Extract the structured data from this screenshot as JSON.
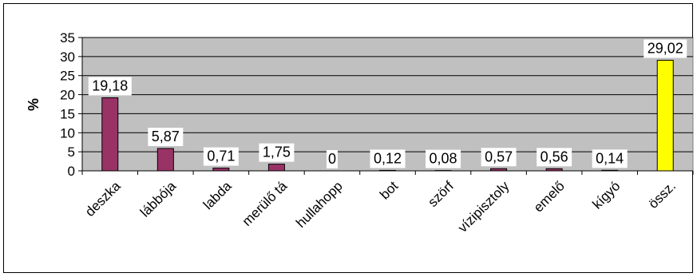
{
  "chart_data": {
    "type": "bar",
    "title": "",
    "xlabel": "",
    "ylabel": "%",
    "ylim": [
      0,
      35
    ],
    "yticks": [
      0,
      5,
      10,
      15,
      20,
      25,
      30,
      35
    ],
    "grid": true,
    "legend": "none",
    "categories": [
      "deszka",
      "lábbója",
      "labda",
      "merülő tá",
      "hullahopp",
      "bot",
      "szörf",
      "vízipisztoly",
      "emelő",
      "kígyó",
      "össz."
    ],
    "values": [
      19.18,
      5.87,
      0.71,
      1.75,
      0,
      0.12,
      0.08,
      0.57,
      0.56,
      0.14,
      29.02
    ],
    "data_labels": [
      "19,18",
      "5,87",
      "0,71",
      "1,75",
      "0",
      "0,12",
      "0,08",
      "0,57",
      "0,56",
      "0,14",
      "29,02"
    ],
    "colors": {
      "plot_background": "#c0c0c0",
      "bar": "#993366",
      "total_bar": "#ffff00",
      "bar_edge": "#000000",
      "gridline": "#000000"
    }
  }
}
